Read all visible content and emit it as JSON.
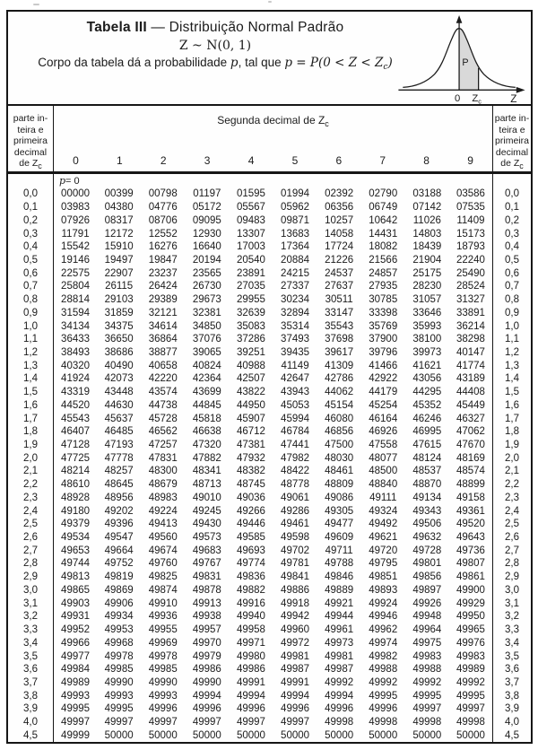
{
  "page": {
    "title_bold": "Tabela III",
    "title_dash": "—",
    "title_rest": "Distribuição Normal Padrão",
    "subtitle": "Z ~ N(0, 1)",
    "caption_text": "Corpo da tabela dá a probabilidade ",
    "caption_p": "p",
    "caption_mid": ", tal que ",
    "caption_formula": "p = P(0 < Z < Z",
    "caption_sub": "c",
    "caption_close": ")"
  },
  "diagram": {
    "shaded_label": "P",
    "origin_label": "0",
    "zc_base": "Z",
    "zc_sub": "c",
    "axis_label": "Z",
    "shade_color": "#d9d9d9"
  },
  "table": {
    "side_header_lines": [
      "parte in-",
      "teira e",
      "primeira",
      "decimal"
    ],
    "side_header_zc_base": "de Z",
    "side_header_zc_sub": "c",
    "center_header_base": "Segunda decimal de Z",
    "center_header_sub": "c",
    "column_headers": [
      "0",
      "1",
      "2",
      "3",
      "4",
      "5",
      "6",
      "7",
      "8",
      "9"
    ],
    "p_note_var": "p",
    "p_note_rest": " = 0",
    "rows": [
      {
        "z": "0,0",
        "values": [
          "00000",
          "00399",
          "00798",
          "01197",
          "01595",
          "01994",
          "02392",
          "02790",
          "03188",
          "03586"
        ]
      },
      {
        "z": "0,1",
        "values": [
          "03983",
          "04380",
          "04776",
          "05172",
          "05567",
          "05962",
          "06356",
          "06749",
          "07142",
          "07535"
        ]
      },
      {
        "z": "0,2",
        "values": [
          "07926",
          "08317",
          "08706",
          "09095",
          "09483",
          "09871",
          "10257",
          "10642",
          "11026",
          "11409"
        ]
      },
      {
        "z": "0,3",
        "values": [
          "11791",
          "12172",
          "12552",
          "12930",
          "13307",
          "13683",
          "14058",
          "14431",
          "14803",
          "15173"
        ]
      },
      {
        "z": "0,4",
        "values": [
          "15542",
          "15910",
          "16276",
          "16640",
          "17003",
          "17364",
          "17724",
          "18082",
          "18439",
          "18793"
        ]
      },
      {
        "z": "0,5",
        "values": [
          "19146",
          "19497",
          "19847",
          "20194",
          "20540",
          "20884",
          "21226",
          "21566",
          "21904",
          "22240"
        ]
      },
      {
        "z": "0,6",
        "values": [
          "22575",
          "22907",
          "23237",
          "23565",
          "23891",
          "24215",
          "24537",
          "24857",
          "25175",
          "25490"
        ]
      },
      {
        "z": "0,7",
        "values": [
          "25804",
          "26115",
          "26424",
          "26730",
          "27035",
          "27337",
          "27637",
          "27935",
          "28230",
          "28524"
        ]
      },
      {
        "z": "0,8",
        "values": [
          "28814",
          "29103",
          "29389",
          "29673",
          "29955",
          "30234",
          "30511",
          "30785",
          "31057",
          "31327"
        ]
      },
      {
        "z": "0,9",
        "values": [
          "31594",
          "31859",
          "32121",
          "32381",
          "32639",
          "32894",
          "33147",
          "33398",
          "33646",
          "33891"
        ]
      },
      {
        "z": "1,0",
        "values": [
          "34134",
          "34375",
          "34614",
          "34850",
          "35083",
          "35314",
          "35543",
          "35769",
          "35993",
          "36214"
        ]
      },
      {
        "z": "1,1",
        "values": [
          "36433",
          "36650",
          "36864",
          "37076",
          "37286",
          "37493",
          "37698",
          "37900",
          "38100",
          "38298"
        ]
      },
      {
        "z": "1,2",
        "values": [
          "38493",
          "38686",
          "38877",
          "39065",
          "39251",
          "39435",
          "39617",
          "39796",
          "39973",
          "40147"
        ]
      },
      {
        "z": "1,3",
        "values": [
          "40320",
          "40490",
          "40658",
          "40824",
          "40988",
          "41149",
          "41309",
          "41466",
          "41621",
          "41774"
        ]
      },
      {
        "z": "1,4",
        "values": [
          "41924",
          "42073",
          "42220",
          "42364",
          "42507",
          "42647",
          "42786",
          "42922",
          "43056",
          "43189"
        ]
      },
      {
        "z": "1,5",
        "values": [
          "43319",
          "43448",
          "43574",
          "43699",
          "43822",
          "43943",
          "44062",
          "44179",
          "44295",
          "44408"
        ]
      },
      {
        "z": "1,6",
        "values": [
          "44520",
          "44630",
          "44738",
          "44845",
          "44950",
          "45053",
          "45154",
          "45254",
          "45352",
          "45449"
        ]
      },
      {
        "z": "1,7",
        "values": [
          "45543",
          "45637",
          "45728",
          "45818",
          "45907",
          "45994",
          "46080",
          "46164",
          "46246",
          "46327"
        ]
      },
      {
        "z": "1,8",
        "values": [
          "46407",
          "46485",
          "46562",
          "46638",
          "46712",
          "46784",
          "46856",
          "46926",
          "46995",
          "47062"
        ]
      },
      {
        "z": "1,9",
        "values": [
          "47128",
          "47193",
          "47257",
          "47320",
          "47381",
          "47441",
          "47500",
          "47558",
          "47615",
          "47670"
        ]
      },
      {
        "z": "2,0",
        "values": [
          "47725",
          "47778",
          "47831",
          "47882",
          "47932",
          "47982",
          "48030",
          "48077",
          "48124",
          "48169"
        ]
      },
      {
        "z": "2,1",
        "values": [
          "48214",
          "48257",
          "48300",
          "48341",
          "48382",
          "48422",
          "48461",
          "48500",
          "48537",
          "48574"
        ]
      },
      {
        "z": "2,2",
        "values": [
          "48610",
          "48645",
          "48679",
          "48713",
          "48745",
          "48778",
          "48809",
          "48840",
          "48870",
          "48899"
        ]
      },
      {
        "z": "2,3",
        "values": [
          "48928",
          "48956",
          "48983",
          "49010",
          "49036",
          "49061",
          "49086",
          "49111",
          "49134",
          "49158"
        ]
      },
      {
        "z": "2,4",
        "values": [
          "49180",
          "49202",
          "49224",
          "49245",
          "49266",
          "49286",
          "49305",
          "49324",
          "49343",
          "49361"
        ]
      },
      {
        "z": "2,5",
        "values": [
          "49379",
          "49396",
          "49413",
          "49430",
          "49446",
          "49461",
          "49477",
          "49492",
          "49506",
          "49520"
        ]
      },
      {
        "z": "2,6",
        "values": [
          "49534",
          "49547",
          "49560",
          "49573",
          "49585",
          "49598",
          "49609",
          "49621",
          "49632",
          "49643"
        ]
      },
      {
        "z": "2,7",
        "values": [
          "49653",
          "49664",
          "49674",
          "49683",
          "49693",
          "49702",
          "49711",
          "49720",
          "49728",
          "49736"
        ]
      },
      {
        "z": "2,8",
        "values": [
          "49744",
          "49752",
          "49760",
          "49767",
          "49774",
          "49781",
          "49788",
          "49795",
          "49801",
          "49807"
        ]
      },
      {
        "z": "2,9",
        "values": [
          "49813",
          "49819",
          "49825",
          "49831",
          "49836",
          "49841",
          "49846",
          "49851",
          "49856",
          "49861"
        ]
      },
      {
        "z": "3,0",
        "values": [
          "49865",
          "49869",
          "49874",
          "49878",
          "49882",
          "49886",
          "49889",
          "49893",
          "49897",
          "49900"
        ]
      },
      {
        "z": "3,1",
        "values": [
          "49903",
          "49906",
          "49910",
          "49913",
          "49916",
          "49918",
          "49921",
          "49924",
          "49926",
          "49929"
        ]
      },
      {
        "z": "3,2",
        "values": [
          "49931",
          "49934",
          "49936",
          "49938",
          "49940",
          "49942",
          "49944",
          "49946",
          "49948",
          "49950"
        ]
      },
      {
        "z": "3,3",
        "values": [
          "49952",
          "49953",
          "49955",
          "49957",
          "49958",
          "49960",
          "49961",
          "49962",
          "49964",
          "49965"
        ]
      },
      {
        "z": "3,4",
        "values": [
          "49966",
          "49968",
          "49969",
          "49970",
          "49971",
          "49972",
          "49973",
          "49974",
          "49975",
          "49976"
        ]
      },
      {
        "z": "3,5",
        "values": [
          "49977",
          "49978",
          "49978",
          "49979",
          "49980",
          "49981",
          "49981",
          "49982",
          "49983",
          "49983"
        ]
      },
      {
        "z": "3,6",
        "values": [
          "49984",
          "49985",
          "49985",
          "49986",
          "49986",
          "49987",
          "49987",
          "49988",
          "49988",
          "49989"
        ]
      },
      {
        "z": "3,7",
        "values": [
          "49989",
          "49990",
          "49990",
          "49990",
          "49991",
          "49991",
          "49992",
          "49992",
          "49992",
          "49992"
        ]
      },
      {
        "z": "3,8",
        "values": [
          "49993",
          "49993",
          "49993",
          "49994",
          "49994",
          "49994",
          "49994",
          "49995",
          "49995",
          "49995"
        ]
      },
      {
        "z": "3,9",
        "values": [
          "49995",
          "49995",
          "49996",
          "49996",
          "49996",
          "49996",
          "49996",
          "49996",
          "49997",
          "49997"
        ]
      },
      {
        "z": "4,0",
        "values": [
          "49997",
          "49997",
          "49997",
          "49997",
          "49997",
          "49997",
          "49998",
          "49998",
          "49998",
          "49998"
        ]
      },
      {
        "z": "4,5",
        "values": [
          "49999",
          "50000",
          "50000",
          "50000",
          "50000",
          "50000",
          "50000",
          "50000",
          "50000",
          "50000"
        ]
      }
    ]
  }
}
